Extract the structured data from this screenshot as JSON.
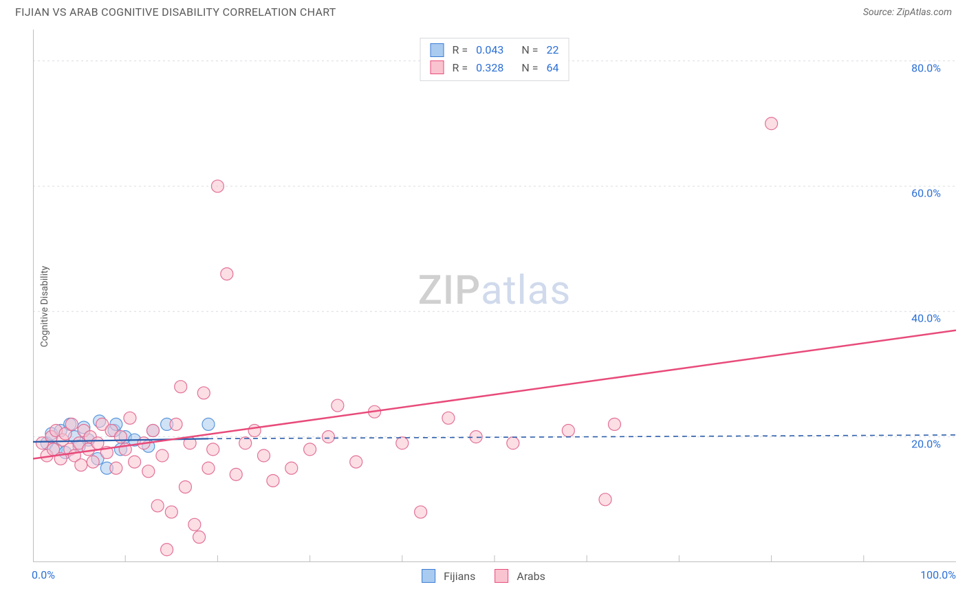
{
  "header": {
    "title": "FIJIAN VS ARAB COGNITIVE DISABILITY CORRELATION CHART",
    "source_text": "Source: ZipAtlas.com"
  },
  "y_axis": {
    "label": "Cognitive Disability",
    "ticks": [
      {
        "value": 20,
        "label": "20.0%"
      },
      {
        "value": 40,
        "label": "40.0%"
      },
      {
        "value": 60,
        "label": "60.0%"
      },
      {
        "value": 80,
        "label": "80.0%"
      }
    ],
    "min": 0,
    "max": 85,
    "label_color": "#2a6fd6",
    "grid_color": "#d8dbe0"
  },
  "x_axis": {
    "ticks": [
      {
        "value": 0,
        "label": "0.0%"
      },
      {
        "value": 100,
        "label": "100.0%"
      }
    ],
    "minor_ticks": [
      10,
      20,
      30,
      40,
      50,
      60,
      70,
      80,
      90
    ],
    "min": 0,
    "max": 100,
    "label_color": "#2a6fd6",
    "axis_color": "#bdbdbd"
  },
  "watermark": {
    "part1": "ZIP",
    "part2": "atlas"
  },
  "legend_top": {
    "rows": [
      {
        "swatch_fill": "#a9cbef",
        "swatch_stroke": "#3a7bd5",
        "r_label": "R =",
        "r_value": "0.043",
        "n_label": "N =",
        "n_value": "22"
      },
      {
        "swatch_fill": "#f9c3d0",
        "swatch_stroke": "#e84a7a",
        "r_label": "R =",
        "r_value": "0.328",
        "n_label": "N =",
        "n_value": "64"
      }
    ]
  },
  "legend_bottom": {
    "items": [
      {
        "swatch_fill": "#a9cbef",
        "swatch_stroke": "#3a7bd5",
        "label": "Fijians"
      },
      {
        "swatch_fill": "#f9c3d0",
        "swatch_stroke": "#e84a7a",
        "label": "Arabs"
      }
    ]
  },
  "chart": {
    "type": "scatter",
    "background_color": "#ffffff",
    "marker_radius": 9,
    "marker_stroke_width": 1.2,
    "series": [
      {
        "name": "Fijians",
        "fill": "rgba(169,203,239,0.55)",
        "stroke": "#5a96da",
        "points": [
          [
            1.5,
            19
          ],
          [
            2,
            20.5
          ],
          [
            2.5,
            18
          ],
          [
            3,
            21
          ],
          [
            3.5,
            17.5
          ],
          [
            4,
            22
          ],
          [
            4.5,
            20
          ],
          [
            5,
            18.5
          ],
          [
            5.5,
            21.5
          ],
          [
            6,
            19.5
          ],
          [
            7,
            16.5
          ],
          [
            7.2,
            22.5
          ],
          [
            8,
            15
          ],
          [
            8.8,
            21
          ],
          [
            9,
            22
          ],
          [
            9.5,
            18
          ],
          [
            10,
            20
          ],
          [
            11,
            19.5
          ],
          [
            12.5,
            18.5
          ],
          [
            13,
            21
          ],
          [
            14.5,
            22
          ],
          [
            19,
            22
          ]
        ],
        "trend": {
          "color": "#2a5caa",
          "width": 2.3,
          "dash_after": 19,
          "p1": [
            0,
            19.2
          ],
          "p2": [
            19,
            19.7
          ],
          "p3": [
            100,
            20.3
          ]
        }
      },
      {
        "name": "Arabs",
        "fill": "rgba(249,195,208,0.55)",
        "stroke": "#e27096",
        "points": [
          [
            1,
            19
          ],
          [
            1.5,
            17
          ],
          [
            2,
            20
          ],
          [
            2.2,
            18
          ],
          [
            2.5,
            21
          ],
          [
            3,
            16.5
          ],
          [
            3.2,
            19.5
          ],
          [
            3.5,
            20.5
          ],
          [
            4,
            18
          ],
          [
            4.2,
            22
          ],
          [
            4.5,
            17
          ],
          [
            5,
            19
          ],
          [
            5.2,
            15.5
          ],
          [
            5.5,
            21
          ],
          [
            6,
            18
          ],
          [
            6.2,
            20
          ],
          [
            6.5,
            16
          ],
          [
            7,
            19
          ],
          [
            7.5,
            22
          ],
          [
            8,
            17.5
          ],
          [
            8.5,
            21
          ],
          [
            9,
            15
          ],
          [
            9.5,
            20
          ],
          [
            10,
            18
          ],
          [
            10.5,
            23
          ],
          [
            11,
            16
          ],
          [
            12,
            19
          ],
          [
            12.5,
            14.5
          ],
          [
            13,
            21
          ],
          [
            13.5,
            9
          ],
          [
            14,
            17
          ],
          [
            14.5,
            2
          ],
          [
            15,
            8
          ],
          [
            15.5,
            22
          ],
          [
            16,
            28
          ],
          [
            16.5,
            12
          ],
          [
            17,
            19
          ],
          [
            17.5,
            6
          ],
          [
            18,
            4
          ],
          [
            18.5,
            27
          ],
          [
            19,
            15
          ],
          [
            19.5,
            18
          ],
          [
            20,
            60
          ],
          [
            21,
            46
          ],
          [
            22,
            14
          ],
          [
            23,
            19
          ],
          [
            24,
            21
          ],
          [
            25,
            17
          ],
          [
            26,
            13
          ],
          [
            28,
            15
          ],
          [
            30,
            18
          ],
          [
            32,
            20
          ],
          [
            33,
            25
          ],
          [
            35,
            16
          ],
          [
            37,
            24
          ],
          [
            40,
            19
          ],
          [
            42,
            8
          ],
          [
            45,
            23
          ],
          [
            48,
            20
          ],
          [
            52,
            19
          ],
          [
            58,
            21
          ],
          [
            62,
            10
          ],
          [
            63,
            22
          ],
          [
            80,
            70
          ]
        ],
        "trend": {
          "color": "#e84a7a",
          "width": 2.5,
          "p1": [
            0,
            16.5
          ],
          "p2": [
            100,
            37
          ]
        }
      }
    ]
  }
}
